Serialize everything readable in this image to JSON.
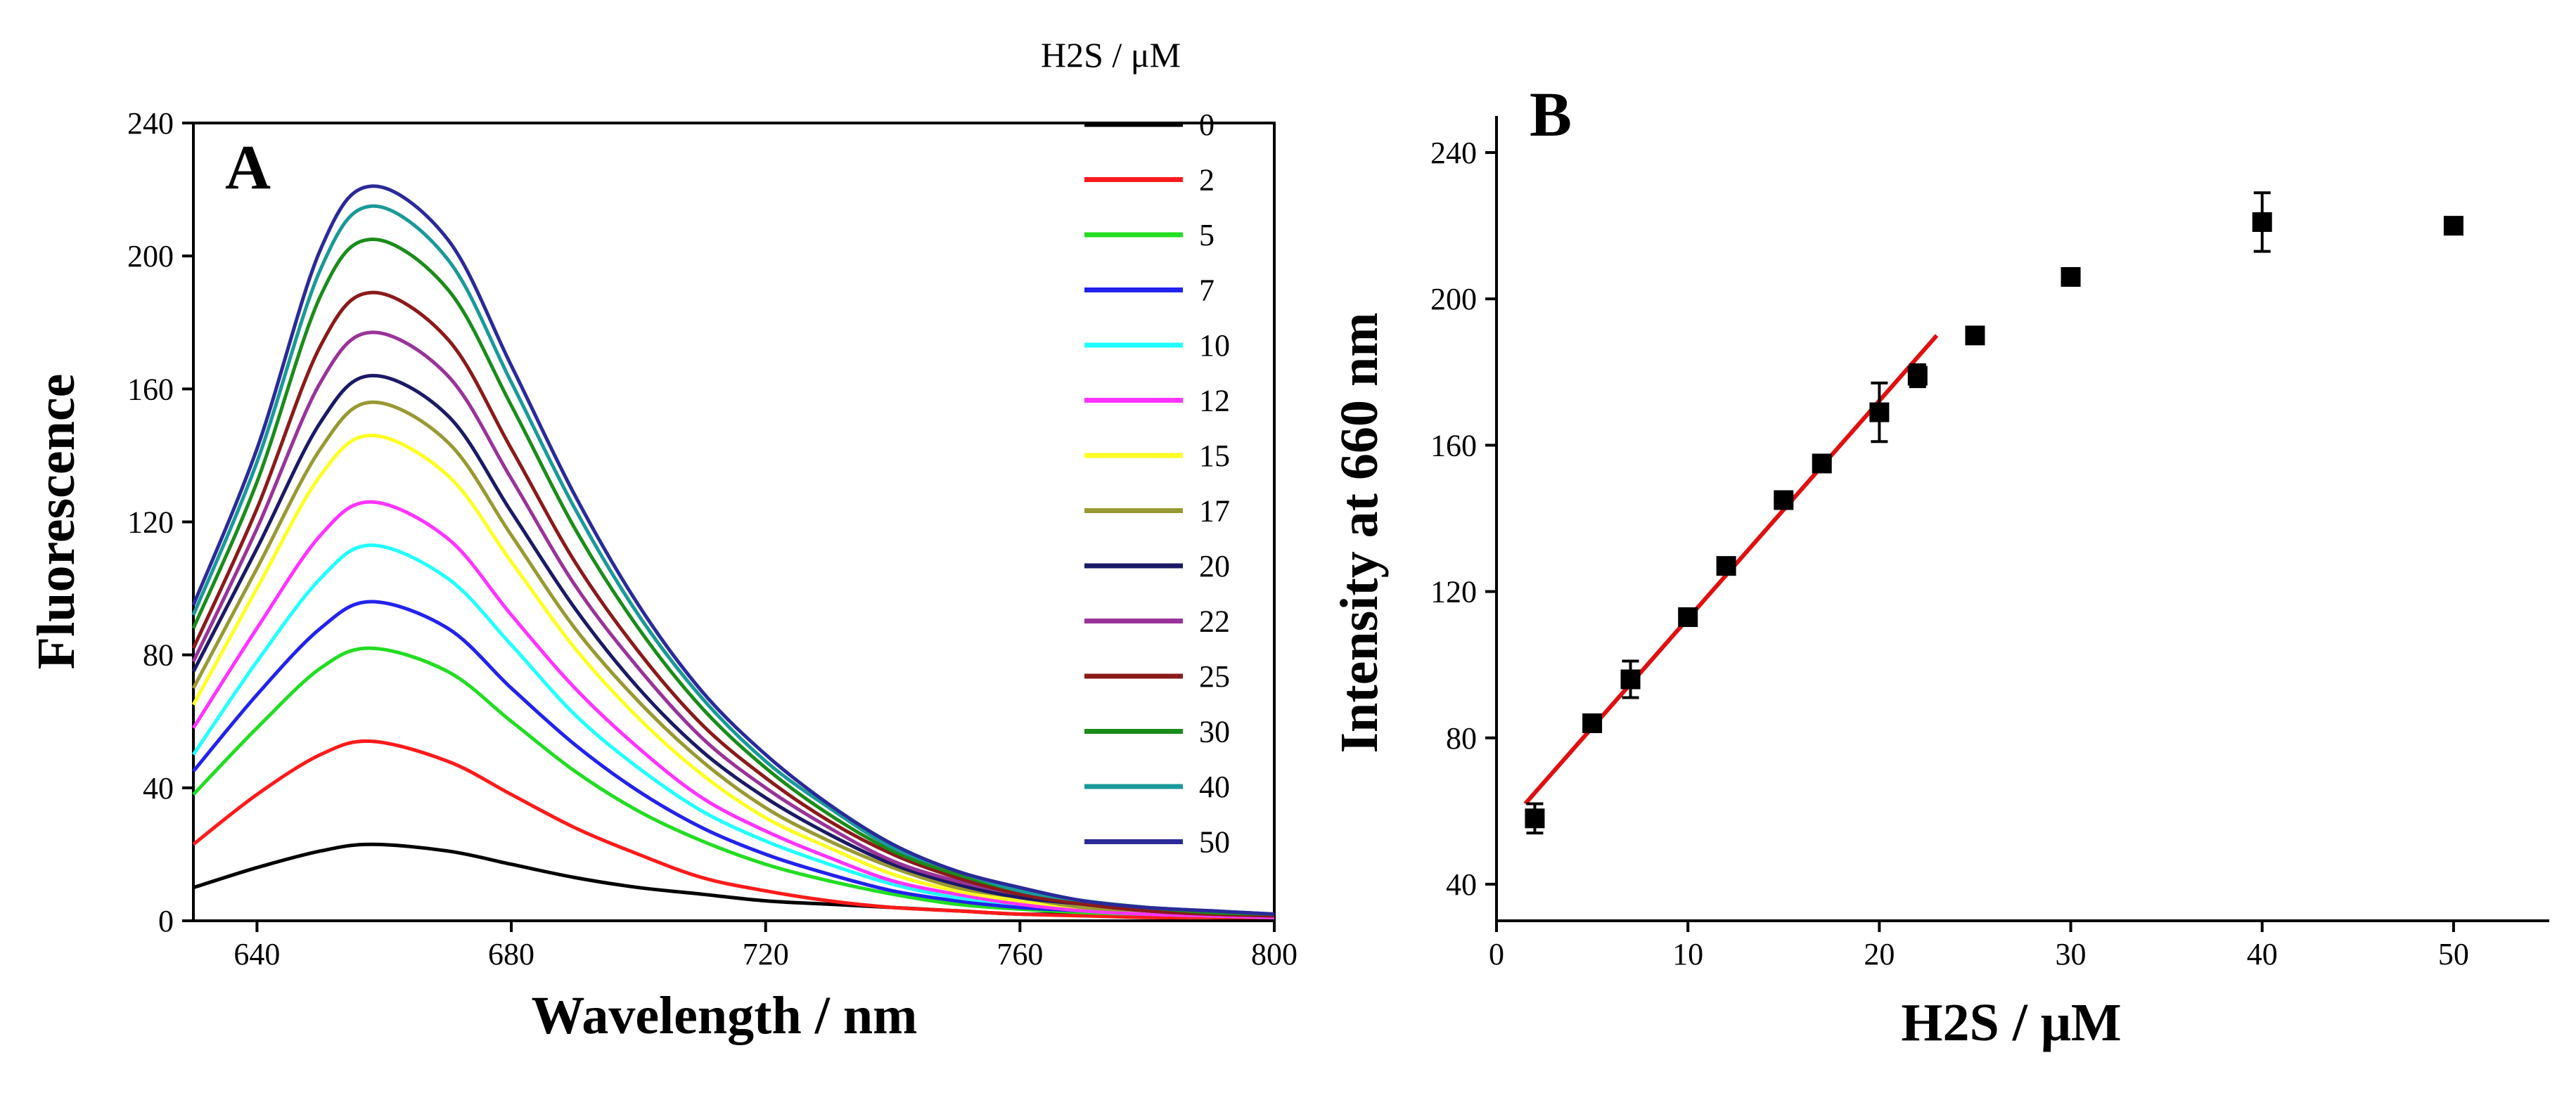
{
  "panels": [
    {
      "label": "A"
    },
    {
      "label": "B"
    }
  ],
  "chart_data": [
    {
      "type": "line",
      "panel": "A",
      "xlabel": "Wavelength / nm",
      "ylabel": "Fluorescence",
      "xlim": [
        630,
        800
      ],
      "ylim": [
        0,
        240
      ],
      "xticks": [
        640,
        680,
        720,
        760,
        800
      ],
      "yticks": [
        0,
        40,
        80,
        120,
        160,
        200,
        240
      ],
      "legend_title": "H2S / μM",
      "legend_position": "right",
      "peak_wavelength": 658,
      "x": [
        630,
        640,
        650,
        658,
        670,
        680,
        690,
        700,
        710,
        720,
        730,
        740,
        750,
        760,
        770,
        780,
        790,
        800
      ],
      "series": [
        {
          "name": "0",
          "color": "#000000",
          "values": [
            10,
            16,
            21,
            23,
            21,
            17,
            13,
            10,
            8,
            6,
            5,
            4,
            3,
            2,
            2,
            1.5,
            1,
            1
          ]
        },
        {
          "name": "2",
          "color": "#ff1a1a",
          "values": [
            23,
            38,
            50,
            54,
            48,
            38,
            28,
            20,
            13,
            9,
            6,
            4,
            3,
            2,
            1.5,
            1,
            1,
            1
          ]
        },
        {
          "name": "5",
          "color": "#22dd22",
          "values": [
            38,
            58,
            76,
            82,
            75,
            60,
            45,
            33,
            24,
            17,
            12,
            8,
            5,
            3.5,
            2.5,
            2,
            1.5,
            1
          ]
        },
        {
          "name": "7",
          "color": "#2222ee",
          "values": [
            45,
            68,
            88,
            96,
            88,
            70,
            53,
            39,
            28,
            20,
            14,
            9,
            6,
            4,
            3,
            2,
            1.5,
            1
          ]
        },
        {
          "name": "10",
          "color": "#22ffff",
          "values": [
            50,
            78,
            103,
            113,
            103,
            83,
            62,
            46,
            33,
            24,
            17,
            11,
            7,
            5,
            3,
            2,
            1.5,
            1
          ]
        },
        {
          "name": "12",
          "color": "#ff33ff",
          "values": [
            58,
            88,
            116,
            126,
            115,
            92,
            70,
            52,
            37,
            27,
            19,
            12,
            8,
            5,
            3,
            2,
            1.5,
            1
          ]
        },
        {
          "name": "15",
          "color": "#ffff22",
          "values": [
            65,
            100,
            134,
            146,
            134,
            108,
            82,
            61,
            44,
            31,
            22,
            14,
            9,
            6,
            4,
            3,
            2,
            1.5
          ]
        },
        {
          "name": "17",
          "color": "#999933",
          "values": [
            70,
            106,
            142,
            156,
            144,
            116,
            88,
            66,
            48,
            34,
            24,
            16,
            10,
            7,
            4,
            3,
            2,
            1.5
          ]
        },
        {
          "name": "20",
          "color": "#1a1a66",
          "values": [
            75,
            112,
            150,
            164,
            152,
            123,
            94,
            70,
            51,
            37,
            26,
            17,
            11,
            7,
            5,
            3,
            2,
            1.5
          ]
        },
        {
          "name": "22",
          "color": "#993399",
          "values": [
            78,
            118,
            162,
            177,
            164,
            133,
            101,
            76,
            55,
            40,
            28,
            18,
            12,
            8,
            5,
            3,
            2,
            1.5
          ]
        },
        {
          "name": "25",
          "color": "#8b1a1a",
          "values": [
            82,
            124,
            173,
            189,
            175,
            142,
            108,
            81,
            59,
            43,
            30,
            20,
            13,
            8,
            5,
            3,
            2,
            1.5
          ]
        },
        {
          "name": "30",
          "color": "#1a8c1a",
          "values": [
            88,
            132,
            188,
            205,
            190,
            155,
            118,
            88,
            64,
            46,
            32,
            21,
            14,
            9,
            6,
            4,
            2.5,
            2
          ]
        },
        {
          "name": "40",
          "color": "#1a9999",
          "values": [
            92,
            138,
            196,
            215,
            199,
            162,
            124,
            92,
            67,
            48,
            34,
            22,
            15,
            9,
            6,
            4,
            3,
            2
          ]
        },
        {
          "name": "50",
          "color": "#2a2a99",
          "values": [
            95,
            142,
            202,
            221,
            205,
            167,
            128,
            95,
            69,
            50,
            35,
            23,
            15,
            10,
            6,
            4,
            3,
            2
          ]
        }
      ]
    },
    {
      "type": "scatter",
      "panel": "B",
      "xlabel": "H2S / μM",
      "ylabel": "Intensity at 660 nm",
      "xlim": [
        0,
        55
      ],
      "ylim": [
        30,
        250
      ],
      "xticks": [
        0,
        10,
        20,
        30,
        40,
        50
      ],
      "yticks": [
        40,
        80,
        120,
        160,
        200,
        240
      ],
      "marker_color": "#000000",
      "fit_color": "#e01010",
      "points": [
        {
          "x": 2,
          "y": 58,
          "err": 4
        },
        {
          "x": 5,
          "y": 84,
          "err": 2
        },
        {
          "x": 7,
          "y": 96,
          "err": 5
        },
        {
          "x": 10,
          "y": 113,
          "err": 2
        },
        {
          "x": 12,
          "y": 127,
          "err": 2
        },
        {
          "x": 15,
          "y": 145,
          "err": 2
        },
        {
          "x": 17,
          "y": 155,
          "err": 2
        },
        {
          "x": 20,
          "y": 169,
          "err": 8
        },
        {
          "x": 22,
          "y": 179,
          "err": 3
        },
        {
          "x": 25,
          "y": 190,
          "err": 2
        },
        {
          "x": 30,
          "y": 206,
          "err": 2
        },
        {
          "x": 40,
          "y": 221,
          "err": 8
        },
        {
          "x": 50,
          "y": 220,
          "err": 2
        }
      ],
      "fit": {
        "x": [
          1.5,
          23
        ],
        "y": [
          62,
          190
        ]
      }
    }
  ]
}
